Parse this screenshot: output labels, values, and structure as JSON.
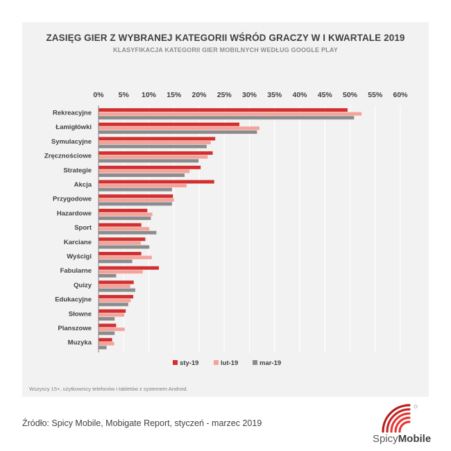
{
  "header": {
    "title": "ZASIĘG GIER Z WYBRANEJ KATEGORII WŚRÓD GRACZY W I KWARTALE 2019",
    "subtitle": "KLASYFIKACJA KATEGORII GIER MOBILNYCH WEDŁUG GOOGLE PLAY"
  },
  "footer": {
    "note": "Wszyscy 15+, użytkownicy telefonów i tabletów z systemem Android.",
    "source": "Źródło: Spicy Mobile, Mobigate Report, styczeń - marzec 2019"
  },
  "logo": {
    "part1": "Spicy",
    "part2": "Mobile",
    "mark": "spicy-mobile-logo-icon"
  },
  "colors": {
    "sty": "#d32f2f",
    "lut": "#f4a39b",
    "mar": "#8c8c8c",
    "panel": "#f2f2f2",
    "text": "#404040"
  },
  "chart_data": {
    "type": "bar",
    "orientation": "horizontal",
    "title": "ZASIĘG GIER Z WYBRANEJ KATEGORII WŚRÓD GRACZY W I KWARTALE 2019",
    "subtitle": "KLASYFIKACJA KATEGORII GIER MOBILNYCH WEDŁUG GOOGLE PLAY",
    "xlabel": "",
    "ylabel": "",
    "xlim": [
      0,
      60
    ],
    "x_axis_position": "top",
    "ticks": [
      "0%",
      "5%",
      "10%",
      "15%",
      "20%",
      "25%",
      "30%",
      "35%",
      "40%",
      "45%",
      "50%",
      "55%",
      "60%"
    ],
    "tick_values": [
      0,
      5,
      10,
      15,
      20,
      25,
      30,
      35,
      40,
      45,
      50,
      55,
      60
    ],
    "grid": true,
    "legend_position": "bottom",
    "categories": [
      "Rekreacyjne",
      "Łamigłówki",
      "Symulacyjne",
      "Zręcznościowe",
      "Strategie",
      "Akcja",
      "Przygodowe",
      "Hazardowe",
      "Sport",
      "Karciane",
      "Wyścigi",
      "Fabularne",
      "Quizy",
      "Edukacyjne",
      "Słowne",
      "Planszowe",
      "Muzyka"
    ],
    "series": [
      {
        "name": "sty-19",
        "color": "#d32f2f",
        "values": [
          49.5,
          28,
          23.2,
          22.7,
          20.3,
          23,
          14.8,
          9.7,
          8.5,
          9.3,
          8.5,
          12,
          7,
          6.9,
          5.4,
          3.5,
          2.7
        ]
      },
      {
        "name": "lut-19",
        "color": "#f4a39b",
        "values": [
          52.3,
          32,
          22.3,
          21.7,
          18.1,
          17.5,
          15,
          10.7,
          10.1,
          8.4,
          10.6,
          8.8,
          6.3,
          6.4,
          5.1,
          5.2,
          3.1
        ]
      },
      {
        "name": "mar-19",
        "color": "#8c8c8c",
        "values": [
          50.8,
          31.5,
          21.5,
          19.9,
          17.1,
          14.6,
          14.6,
          10.4,
          11.5,
          10.1,
          6.7,
          3.5,
          7.3,
          5.9,
          3.2,
          3.2,
          1.6
        ]
      }
    ]
  }
}
